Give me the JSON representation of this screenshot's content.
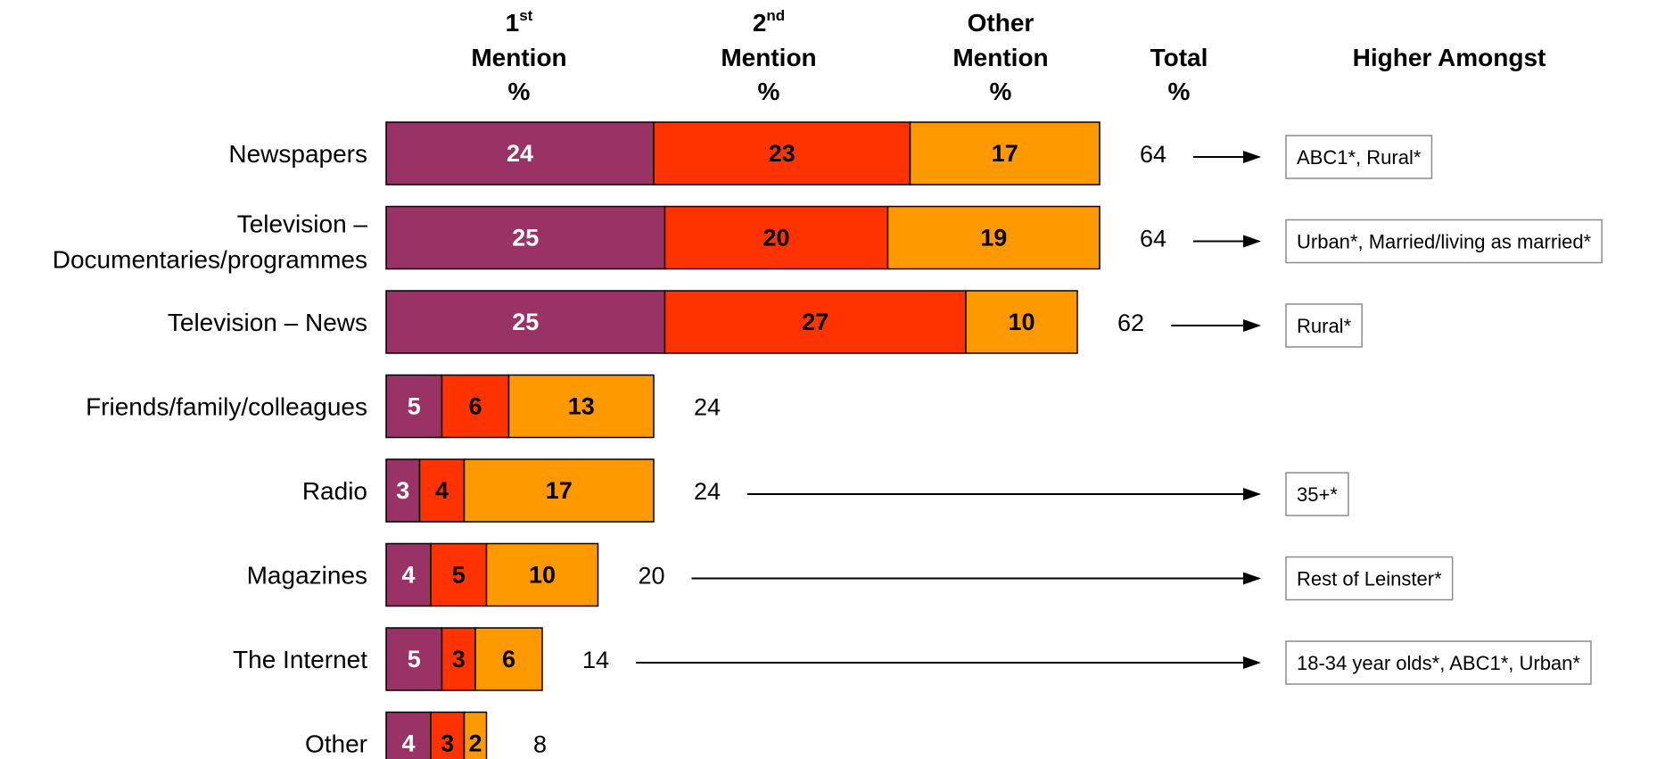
{
  "headers": {
    "first": {
      "line1": "1",
      "sup": "st",
      "line2": "Mention",
      "line3": "%"
    },
    "second": {
      "line1": "2",
      "sup": "nd",
      "line2": "Mention",
      "line3": "%"
    },
    "other": {
      "line1": "Other",
      "line2": "Mention",
      "line3": "%"
    },
    "total": {
      "line1": "Total",
      "line2": "%"
    },
    "higher": {
      "line1": "Higher Amongst"
    }
  },
  "colors": {
    "first": "#993366",
    "second": "#ff3300",
    "other": "#ff9900",
    "first_label": "#ffffff",
    "second_label": "#000000",
    "other_label": "#000000"
  },
  "chart_data": {
    "type": "bar",
    "orientation": "horizontal",
    "stacked": true,
    "categories": [
      [
        "Newspapers"
      ],
      [
        "Television –",
        "Documentaries/programmes"
      ],
      [
        "Television – News"
      ],
      [
        "Friends/family/colleagues"
      ],
      [
        "Radio"
      ],
      [
        "Magazines"
      ],
      [
        "The Internet"
      ],
      [
        "Other"
      ]
    ],
    "series": [
      {
        "name": "1st Mention",
        "values": [
          24,
          25,
          25,
          5,
          3,
          4,
          5,
          4
        ]
      },
      {
        "name": "2nd Mention",
        "values": [
          23,
          20,
          27,
          6,
          4,
          5,
          3,
          3
        ]
      },
      {
        "name": "Other Mention",
        "values": [
          17,
          19,
          10,
          13,
          17,
          10,
          6,
          2
        ]
      }
    ],
    "totals": [
      64,
      64,
      62,
      24,
      24,
      20,
      14,
      8
    ],
    "higher_amongst": [
      "ABC1*, Rural*",
      "Urban*, Married/living as married*",
      "Rural*",
      "",
      "35+*",
      "Rest of Leinster*",
      "18-34 year olds*, ABC1*, Urban*",
      ""
    ],
    "xlim": [
      0,
      64
    ]
  }
}
